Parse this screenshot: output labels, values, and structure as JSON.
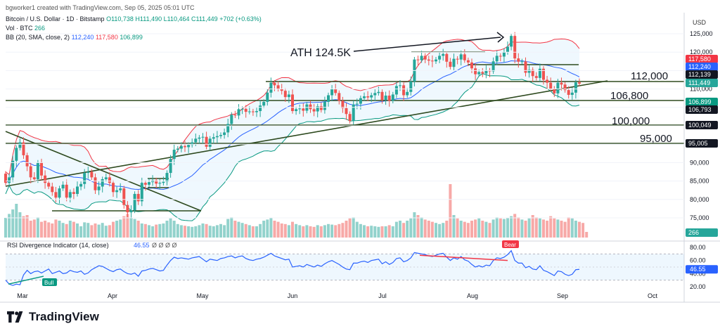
{
  "header": {
    "credit": "bgworker1 created with TradingView.com, Sep 05, 2025 05:01 UTC",
    "symbol": "Bitcoin / U.S. Dollar · 1D · Bitstamp",
    "ohlc": "O110,738 H111,490 L110,464 C111,449 +702 (+0.63%)",
    "vol_label": "Vol · BTC",
    "vol_value": "266",
    "bb_label": "BB (20, SMA, close, 2)",
    "bb_basis": "112,240",
    "bb_upper": "117,580",
    "bb_lower": "106,899",
    "currency": "USD"
  },
  "footer": {
    "brand": "TradingView"
  },
  "colors": {
    "up": "#26a69a",
    "down": "#ef5350",
    "bb_upper": "#f23645",
    "bb_basis": "#2962ff",
    "bb_lower": "#089981",
    "rsi": "#2962ff",
    "level_line": "#2e4a1f",
    "price_label": "#131722"
  },
  "chart_data": [
    {
      "type": "candlestick",
      "ylim": [
        70000,
        128000
      ],
      "yticks": [
        "125,000",
        "120,000",
        "115,000",
        "110,000",
        "105,000",
        "100,000",
        "95,000",
        "90,000",
        "85,000",
        "80,000",
        "75,000",
        "70,000"
      ],
      "xticks": [
        "Mar",
        "Apr",
        "May",
        "Jun",
        "Jul",
        "Aug",
        "Sep",
        "Oct"
      ],
      "annotations": [
        "ATH 124.5K",
        "112,000",
        "106,800",
        "100,000",
        "95,000"
      ],
      "levels": [
        112000,
        106800,
        100000,
        95000
      ],
      "price_labels": [
        {
          "text": "117,580",
          "kind": "bb_upper"
        },
        {
          "text": "112,240",
          "kind": "bb_basis"
        },
        {
          "text": "112,139",
          "kind": "dark"
        },
        {
          "text": "111,449",
          "kind": "price"
        },
        {
          "text": "106,899",
          "kind": "bb_lower"
        },
        {
          "text": "106,793",
          "kind": "dark"
        },
        {
          "text": "100,049",
          "kind": "dark"
        },
        {
          "text": "95,005",
          "kind": "dark"
        },
        {
          "text": "266",
          "kind": "vol"
        }
      ],
      "close_series": [
        84500,
        86000,
        90500,
        94000,
        95500,
        92000,
        89000,
        86000,
        85500,
        90000,
        86500,
        84500,
        83500,
        82000,
        80500,
        83000,
        84000,
        80500,
        82000,
        81500,
        83500,
        84200,
        87200,
        87500,
        86000,
        82500,
        83500,
        85500,
        86000,
        84500,
        82000,
        82500,
        83000,
        78500,
        76500,
        77000,
        81500,
        79500,
        84500,
        84000,
        84700,
        85200,
        84300,
        84500,
        84800,
        87200,
        91000,
        93500,
        93800,
        94500,
        94200,
        94800,
        95500,
        96500,
        96800,
        97000,
        94300,
        96500,
        96900,
        97200,
        97500,
        98200,
        100500,
        103000,
        102800,
        104500,
        104600,
        103800,
        103900,
        103700,
        104000,
        105500,
        106500,
        109000,
        111700,
        111000,
        110000,
        109500,
        107800,
        108500,
        104000,
        104500,
        104700,
        104100,
        105800,
        104500,
        103900,
        105300,
        104300,
        106500,
        108300,
        110000,
        108900,
        106800,
        104800,
        103200,
        101300,
        105800,
        106000,
        107500,
        108000,
        107700,
        108300,
        108900,
        109200,
        107000,
        108200,
        106800,
        108500,
        110800,
        111000,
        108300,
        109200,
        112000,
        118000,
        117800,
        119000,
        118000,
        117700,
        117500,
        118000,
        119000,
        119500,
        117400,
        116000,
        118200,
        118000,
        119400,
        117800,
        117200,
        115600,
        114000,
        114600,
        114200,
        115000,
        114800,
        117500,
        119000,
        118800,
        120000,
        121500,
        124400,
        118300,
        117400,
        117500,
        114400,
        115200,
        113500,
        113000,
        115500,
        112500,
        111700,
        110100,
        108800,
        111700,
        111200,
        109700,
        108400,
        109000,
        111800,
        111449
      ],
      "volume_relative": [
        0.35,
        0.42,
        0.5,
        0.6,
        0.45,
        0.38,
        0.4,
        0.3,
        0.32,
        0.36,
        0.28,
        0.3,
        0.27,
        0.25,
        0.32,
        0.3,
        0.26,
        0.24,
        0.3,
        0.28,
        0.25,
        0.2,
        0.27,
        0.26,
        0.22,
        0.25,
        0.23,
        0.26,
        0.21,
        0.22,
        0.28,
        0.3,
        0.32,
        0.38,
        0.42,
        0.35,
        0.33,
        0.3,
        0.25,
        0.24,
        0.22,
        0.2,
        0.23,
        0.24,
        0.25,
        0.3,
        0.34,
        0.3,
        0.24,
        0.22,
        0.21,
        0.2,
        0.19,
        0.2,
        0.22,
        0.25,
        0.24,
        0.21,
        0.2,
        0.22,
        0.24,
        0.22,
        0.33,
        0.36,
        0.3,
        0.28,
        0.26,
        0.24,
        0.22,
        0.2,
        0.2,
        0.24,
        0.3,
        0.32,
        0.35,
        0.3,
        0.28,
        0.25,
        0.24,
        0.22,
        0.28,
        0.24,
        0.22,
        0.2,
        0.22,
        0.2,
        0.19,
        0.22,
        0.2,
        0.22,
        0.24,
        0.23,
        0.22,
        0.24,
        0.26,
        0.3,
        0.34,
        0.36,
        0.28,
        0.24,
        0.22,
        0.2,
        0.21,
        0.2,
        0.19,
        0.2,
        0.2,
        0.22,
        0.2,
        0.28,
        0.3,
        0.26,
        0.3,
        0.34,
        0.45,
        0.4,
        0.36,
        0.32,
        0.3,
        0.28,
        0.26,
        0.24,
        0.26,
        0.3,
        0.95,
        0.4,
        0.34,
        0.3,
        0.28,
        0.26,
        0.3,
        0.32,
        0.34,
        0.3,
        0.28,
        0.26,
        0.32,
        0.36,
        0.34,
        0.33,
        0.35,
        0.38,
        0.42,
        0.36,
        0.32,
        0.3,
        0.34,
        0.4,
        0.36,
        0.34,
        0.32,
        0.3,
        0.38,
        0.34,
        0.32,
        0.3,
        0.28,
        0.36,
        0.34,
        0.3,
        0.28,
        0.26,
        0.1
      ]
    },
    {
      "type": "line",
      "title": "RSI Divergence Indicator (14, close)",
      "value": "46.55",
      "extra_values": "Ø Ø Ø Ø",
      "ylim": [
        20,
        80
      ],
      "yticks": [
        "80.00",
        "60.00",
        "40.00",
        "20.00"
      ],
      "annotations": [
        "Bull",
        "Bear"
      ],
      "series": [
        {
          "values": [
            30,
            24,
            22,
            24,
            23,
            38,
            45,
            40,
            43,
            44,
            41,
            44,
            47,
            40,
            42,
            44,
            40,
            41,
            45,
            43,
            42,
            44,
            39,
            41,
            46,
            49,
            52,
            51,
            48,
            45,
            43,
            46,
            47,
            43,
            40,
            39,
            41,
            36,
            44,
            45,
            47,
            48,
            46,
            44,
            45,
            53,
            60,
            65,
            63,
            64,
            63,
            62,
            64,
            65,
            66,
            62,
            58,
            62,
            61,
            60,
            63,
            64,
            66,
            67,
            64,
            66,
            67,
            63,
            61,
            60,
            62,
            63,
            65,
            68,
            71,
            67,
            65,
            63,
            61,
            62,
            50,
            51,
            52,
            50,
            54,
            52,
            50,
            53,
            51,
            55,
            58,
            60,
            57,
            54,
            50,
            47,
            46,
            56,
            56,
            58,
            59,
            57,
            60,
            61,
            62,
            55,
            58,
            54,
            57,
            63,
            64,
            58,
            60,
            64,
            72,
            71,
            70,
            69,
            67,
            66,
            68,
            70,
            71,
            65,
            60,
            64,
            62,
            66,
            61,
            59,
            54,
            50,
            52,
            50,
            53,
            52,
            60,
            64,
            63,
            65,
            69,
            75,
            60,
            56,
            56,
            49,
            51,
            47,
            46,
            52,
            45,
            43,
            40,
            37,
            44,
            43,
            39,
            37,
            39,
            46,
            46.55
          ]
        }
      ]
    }
  ]
}
